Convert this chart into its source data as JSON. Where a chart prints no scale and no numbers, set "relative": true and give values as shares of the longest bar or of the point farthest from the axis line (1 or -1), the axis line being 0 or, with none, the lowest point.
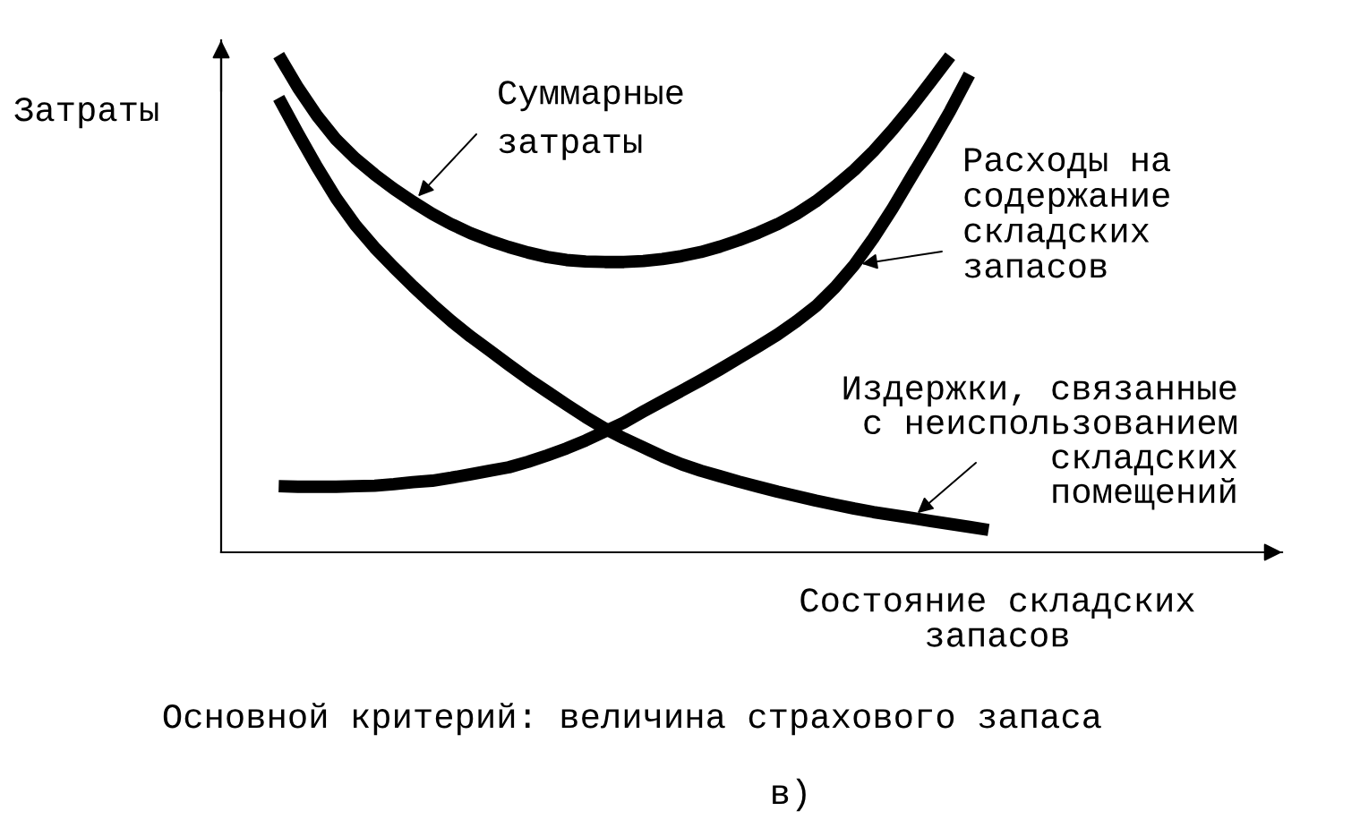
{
  "chart_data": {
    "type": "line",
    "relative": true,
    "line_style": "solid",
    "ylabel": "Затраты",
    "xlabel": "Состояние складских\nзапасов",
    "annotations": [
      "Основной критерий: величина страхового запаса",
      "в)"
    ],
    "categories": [
      null,
      null,
      null,
      null,
      null,
      null,
      null,
      null,
      null,
      null,
      null,
      null,
      null,
      null,
      null,
      null,
      null,
      null,
      null,
      null,
      null,
      null,
      null,
      null,
      null,
      null,
      null,
      null,
      null,
      null,
      null,
      null,
      null,
      null,
      null,
      null,
      null,
      null,
      null,
      null,
      null,
      null,
      null,
      null,
      null,
      null,
      null,
      null,
      null,
      null,
      null,
      null,
      null,
      null,
      null,
      null
    ],
    "series": [
      {
        "name": "Суммарные\nзатраты",
        "color": "#000000",
        "values": [
          null,
          null,
          null,
          1.0,
          0.935,
          0.878,
          0.83,
          0.792,
          0.76,
          0.731,
          0.705,
          0.681,
          0.66,
          0.642,
          0.627,
          0.614,
          0.603,
          0.594,
          0.588,
          0.585,
          0.584,
          0.584,
          0.586,
          0.59,
          0.596,
          0.604,
          0.615,
          0.628,
          0.643,
          0.66,
          0.681,
          0.706,
          0.736,
          0.769,
          0.807,
          0.85,
          0.897,
          0.947,
          0.998,
          null,
          null,
          null,
          null,
          null,
          null,
          null,
          null,
          null,
          null,
          null,
          null,
          null,
          null,
          null,
          null,
          null
        ]
      },
      {
        "name": "Расходы на\nсодержание\nскладских\nзапасов",
        "color": "#000000",
        "values": [
          null,
          null,
          null,
          0.133,
          0.132,
          0.132,
          0.132,
          0.133,
          0.134,
          0.137,
          0.141,
          0.144,
          0.15,
          0.157,
          0.164,
          0.171,
          0.182,
          0.195,
          0.209,
          0.225,
          0.243,
          0.261,
          0.283,
          0.304,
          0.325,
          0.346,
          0.368,
          0.391,
          0.414,
          0.438,
          0.465,
          0.495,
          0.533,
          0.578,
          0.632,
          0.692,
          0.757,
          0.821,
          0.888,
          0.961,
          null,
          null,
          null,
          null,
          null,
          null,
          null,
          null,
          null,
          null,
          null,
          null,
          null,
          null,
          null,
          null
        ]
      },
      {
        "name": "Издержки, связанные\nс неиспользованием\nскладских\nпомещений",
        "color": "#000000",
        "values": [
          null,
          null,
          null,
          0.914,
          0.843,
          0.775,
          0.712,
          0.658,
          0.613,
          0.573,
          0.535,
          0.499,
          0.465,
          0.434,
          0.406,
          0.377,
          0.349,
          0.323,
          0.297,
          0.272,
          0.249,
          0.229,
          0.211,
          0.193,
          0.177,
          0.164,
          0.153,
          0.142,
          0.132,
          0.122,
          0.113,
          0.104,
          0.096,
          0.088,
          0.081,
          0.075,
          0.069,
          0.063,
          0.057,
          0.051,
          0.045,
          null,
          null,
          null,
          null,
          null,
          null,
          null,
          null,
          null,
          null,
          null,
          null,
          null,
          null,
          null
        ]
      }
    ]
  }
}
